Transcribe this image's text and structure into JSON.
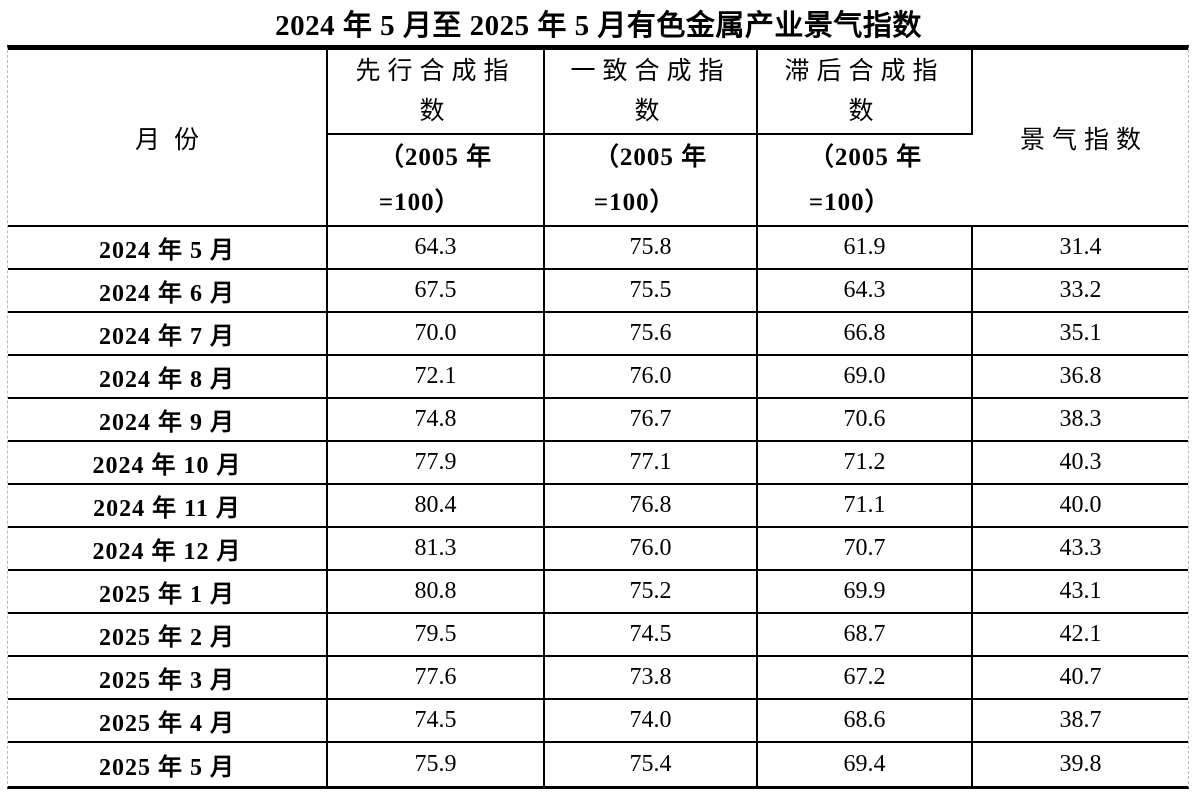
{
  "page": {
    "title": "2024 年 5 月至 2025 年 5 月有色金属产业景气指数"
  },
  "colors": {
    "text": "#000000",
    "border": "#000000",
    "page_edge_dashed": "#b9b9b9",
    "background": "#ffffff"
  },
  "table": {
    "headers": {
      "month": "月份",
      "leading": "先行合成指\n数",
      "coincident": "一致合成指\n数",
      "lagging": "滞后合成指\n数",
      "base_note": "（2005 年\n=100）",
      "prosperity": "景气指数"
    },
    "rows": [
      {
        "month": "2024 年 5 月",
        "leading": "64.3",
        "coincident": "75.8",
        "lagging": "61.9",
        "prosperity": "31.4"
      },
      {
        "month": "2024 年 6 月",
        "leading": "67.5",
        "coincident": "75.5",
        "lagging": "64.3",
        "prosperity": "33.2"
      },
      {
        "month": "2024 年 7 月",
        "leading": "70.0",
        "coincident": "75.6",
        "lagging": "66.8",
        "prosperity": "35.1"
      },
      {
        "month": "2024 年 8 月",
        "leading": "72.1",
        "coincident": "76.0",
        "lagging": "69.0",
        "prosperity": "36.8"
      },
      {
        "month": "2024 年 9 月",
        "leading": "74.8",
        "coincident": "76.7",
        "lagging": "70.6",
        "prosperity": "38.3"
      },
      {
        "month": "2024 年 10 月",
        "leading": "77.9",
        "coincident": "77.1",
        "lagging": "71.2",
        "prosperity": "40.3"
      },
      {
        "month": "2024 年 11 月",
        "leading": "80.4",
        "coincident": "76.8",
        "lagging": "71.1",
        "prosperity": "40.0"
      },
      {
        "month": "2024 年 12 月",
        "leading": "81.3",
        "coincident": "76.0",
        "lagging": "70.7",
        "prosperity": "43.3"
      },
      {
        "month": "2025 年 1 月",
        "leading": "80.8",
        "coincident": "75.2",
        "lagging": "69.9",
        "prosperity": "43.1"
      },
      {
        "month": "2025 年 2 月",
        "leading": "79.5",
        "coincident": "74.5",
        "lagging": "68.7",
        "prosperity": "42.1"
      },
      {
        "month": "2025 年 3 月",
        "leading": "77.6",
        "coincident": "73.8",
        "lagging": "67.2",
        "prosperity": "40.7"
      },
      {
        "month": "2025 年 4 月",
        "leading": "74.5",
        "coincident": "74.0",
        "lagging": "68.6",
        "prosperity": "38.7"
      },
      {
        "month": "2025 年 5 月",
        "leading": "75.9",
        "coincident": "75.4",
        "lagging": "69.4",
        "prosperity": "39.8"
      }
    ]
  }
}
